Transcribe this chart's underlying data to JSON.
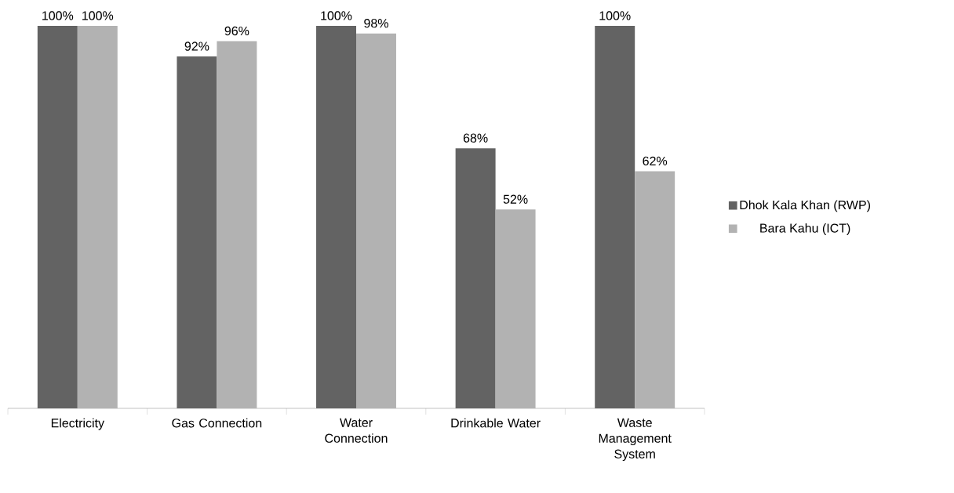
{
  "chart_data": {
    "type": "bar",
    "categories": [
      "Electricity",
      "Gas Connection",
      "Water Connection",
      "Drinkable Water",
      "Waste Management System"
    ],
    "series": [
      {
        "name": "Dhok Kala Khan (RWP)",
        "color": "#636363",
        "values": [
          100,
          92,
          100,
          68,
          100
        ],
        "value_labels": [
          "100%",
          "92%",
          "100%",
          "68%",
          "100%"
        ]
      },
      {
        "name": "Bara Kahu (ICT)",
        "color": "#b2b2b2",
        "values": [
          100,
          96,
          98,
          52,
          62
        ],
        "value_labels": [
          "100%",
          "96%",
          "98%",
          "52%",
          "62%"
        ]
      }
    ],
    "legend": "right",
    "grid": false
  }
}
